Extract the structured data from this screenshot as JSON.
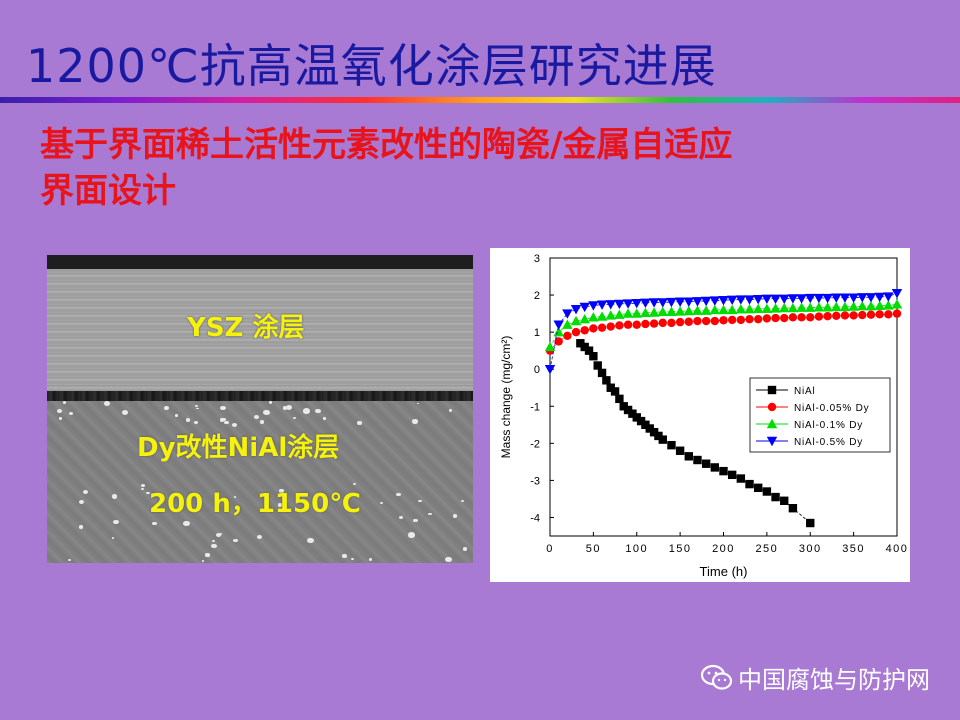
{
  "slide": {
    "title": "1200℃抗高温氧化涂层研究进展",
    "subtitle_line1": "基于界面稀土活性元素改性的陶瓷/金属自适应",
    "subtitle_line2": "界面设计"
  },
  "micrograph": {
    "label_top": "YSZ 涂层",
    "label_mid": "Dy改性NiAl涂层",
    "label_bottom": "200 h，1150℃"
  },
  "watermark": {
    "text": "中国腐蚀与防护网",
    "icon": "wechat-icon"
  },
  "colors": {
    "background": "#a97ad4",
    "title": "#1a1aa0",
    "subtitle": "#e8141c",
    "micro_label": "#f5f20e"
  },
  "chart_data": {
    "type": "scatter",
    "xlabel": "Time (h)",
    "ylabel": "Mass change (mg/cm²)",
    "xlim": [
      0,
      400
    ],
    "ylim": [
      -4.5,
      3
    ],
    "xticks": [
      0,
      50,
      100,
      150,
      200,
      250,
      300,
      350,
      400
    ],
    "yticks": [
      -4,
      -3,
      -2,
      -1,
      0,
      1,
      2,
      3
    ],
    "legend_position": "right",
    "series": [
      {
        "name": "NiAl",
        "color": "#000000",
        "marker": "square",
        "x": [
          35,
          40,
          45,
          50,
          55,
          60,
          65,
          70,
          75,
          80,
          85,
          90,
          95,
          100,
          105,
          110,
          115,
          120,
          125,
          130,
          140,
          150,
          160,
          170,
          180,
          190,
          200,
          210,
          220,
          230,
          240,
          250,
          260,
          270,
          280,
          300
        ],
        "y": [
          0.7,
          0.6,
          0.5,
          0.35,
          0.1,
          -0.1,
          -0.3,
          -0.5,
          -0.6,
          -0.8,
          -1.0,
          -1.1,
          -1.2,
          -1.3,
          -1.4,
          -1.5,
          -1.6,
          -1.7,
          -1.8,
          -1.9,
          -2.05,
          -2.2,
          -2.35,
          -2.45,
          -2.55,
          -2.65,
          -2.75,
          -2.85,
          -2.95,
          -3.1,
          -3.2,
          -3.3,
          -3.45,
          -3.55,
          -3.75,
          -4.15
        ]
      },
      {
        "name": "NiAl-0.05% Dy",
        "color": "#ff0000",
        "marker": "circle",
        "x": [
          0,
          10,
          20,
          30,
          40,
          50,
          60,
          70,
          80,
          90,
          100,
          110,
          120,
          130,
          140,
          150,
          160,
          170,
          180,
          190,
          200,
          210,
          220,
          230,
          240,
          250,
          260,
          270,
          280,
          290,
          300,
          310,
          320,
          330,
          340,
          350,
          360,
          370,
          380,
          390,
          400
        ],
        "y": [
          0.5,
          0.75,
          0.9,
          1.0,
          1.05,
          1.1,
          1.12,
          1.15,
          1.18,
          1.2,
          1.2,
          1.22,
          1.23,
          1.25,
          1.25,
          1.27,
          1.28,
          1.3,
          1.3,
          1.3,
          1.32,
          1.33,
          1.33,
          1.35,
          1.35,
          1.37,
          1.38,
          1.38,
          1.4,
          1.4,
          1.4,
          1.42,
          1.43,
          1.44,
          1.45,
          1.45,
          1.46,
          1.47,
          1.48,
          1.48,
          1.5
        ]
      },
      {
        "name": "NiAl-0.1% Dy",
        "color": "#00dd00",
        "marker": "triangle-up",
        "x": [
          0,
          10,
          20,
          30,
          40,
          50,
          60,
          70,
          80,
          90,
          100,
          110,
          120,
          130,
          140,
          150,
          160,
          170,
          180,
          190,
          200,
          210,
          220,
          230,
          240,
          250,
          260,
          270,
          280,
          290,
          300,
          310,
          320,
          330,
          340,
          350,
          360,
          370,
          380,
          390,
          400
        ],
        "y": [
          0.6,
          1.0,
          1.2,
          1.3,
          1.35,
          1.4,
          1.42,
          1.45,
          1.47,
          1.5,
          1.5,
          1.52,
          1.53,
          1.55,
          1.55,
          1.56,
          1.57,
          1.58,
          1.58,
          1.6,
          1.6,
          1.6,
          1.62,
          1.62,
          1.63,
          1.63,
          1.64,
          1.65,
          1.65,
          1.66,
          1.66,
          1.67,
          1.67,
          1.68,
          1.68,
          1.69,
          1.7,
          1.7,
          1.71,
          1.72,
          1.75
        ]
      },
      {
        "name": "NiAl-0.5% Dy",
        "color": "#0000ff",
        "marker": "triangle-down",
        "x": [
          0,
          10,
          20,
          30,
          40,
          50,
          60,
          70,
          80,
          90,
          100,
          110,
          120,
          130,
          140,
          150,
          160,
          170,
          180,
          190,
          200,
          210,
          220,
          230,
          240,
          250,
          260,
          270,
          280,
          290,
          300,
          310,
          320,
          330,
          340,
          350,
          360,
          370,
          380,
          390,
          400
        ],
        "y": [
          0.0,
          1.2,
          1.5,
          1.62,
          1.68,
          1.72,
          1.74,
          1.75,
          1.76,
          1.77,
          1.78,
          1.79,
          1.8,
          1.8,
          1.81,
          1.82,
          1.82,
          1.83,
          1.84,
          1.85,
          1.86,
          1.87,
          1.88,
          1.88,
          1.89,
          1.9,
          1.9,
          1.9,
          1.91,
          1.91,
          1.92,
          1.92,
          1.92,
          1.93,
          1.93,
          1.93,
          1.94,
          1.94,
          1.95,
          1.96,
          2.05
        ]
      }
    ]
  }
}
